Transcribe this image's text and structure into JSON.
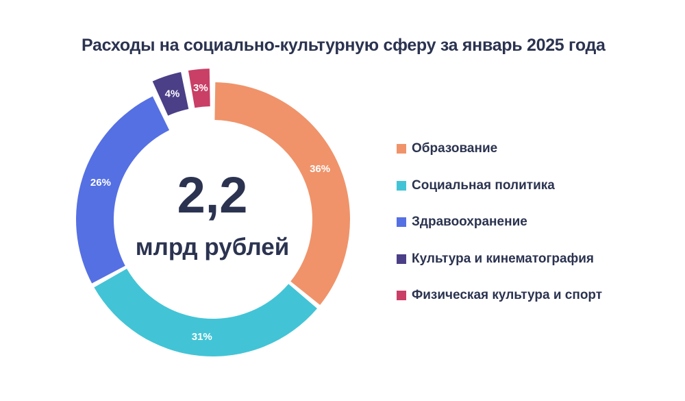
{
  "title": "Расходы на социально-культурную сферу за январь 2025 года",
  "center": {
    "value": "2,2",
    "unit": "млрд рублей"
  },
  "chart_data": {
    "type": "pie",
    "title": "Расходы на социально-культурную сферу за январь 2025 года",
    "categories": [
      "Образование",
      "Социальная политика",
      "Здравоохранение",
      "Культура и кинематография",
      "Физическая культура и спорт"
    ],
    "values": [
      36,
      31,
      26,
      4,
      3
    ],
    "labels": [
      "36%",
      "31%",
      "26%",
      "4%",
      "3%"
    ],
    "colors": [
      "#f0936a",
      "#42c4d6",
      "#5570e3",
      "#4b3f87",
      "#c93f66"
    ],
    "total": "2,2 млрд рублей",
    "legend_position": "right"
  }
}
